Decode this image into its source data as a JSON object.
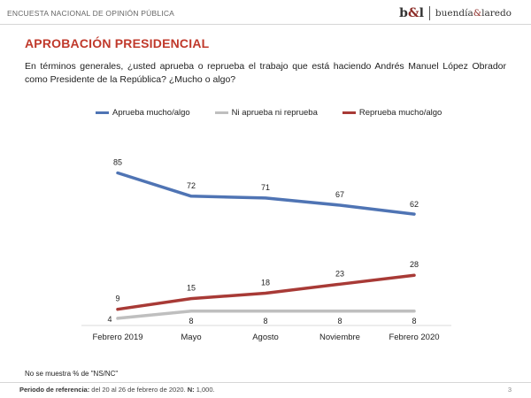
{
  "header": {
    "survey_name": "ENCUESTA NACIONAL DE OPINIÓN PÚBLICA",
    "brand_mark_b": "b",
    "brand_mark_amp": "&",
    "brand_mark_l": "l",
    "brand_name_1": "buendía",
    "brand_name_amp": "&",
    "brand_name_2": "laredo"
  },
  "page": {
    "title": "APROBACIÓN PRESIDENCIAL",
    "question": "En términos generales, ¿usted aprueba o reprueba el trabajo que está haciendo Andrés Manuel López Obrador como Presidente de la República? ¿Mucho o algo?"
  },
  "colors": {
    "approve": "#4f74b4",
    "neutral": "#bfbfbf",
    "disapprove": "#a83a36",
    "title": "#c0392b"
  },
  "chart_data": {
    "type": "line",
    "categories": [
      "Febrero 2019",
      "Mayo",
      "Agosto",
      "Noviembre",
      "Febrero 2020"
    ],
    "series": [
      {
        "name": "Aprueba mucho/algo",
        "values": [
          85,
          72,
          71,
          67,
          62
        ]
      },
      {
        "name": "Ni aprueba ni reprueba",
        "values": [
          4,
          8,
          8,
          8,
          8
        ]
      },
      {
        "name": "Reprueba mucho/algo",
        "values": [
          9,
          15,
          18,
          23,
          28
        ]
      }
    ],
    "ylim": [
      0,
      100
    ],
    "grid": false,
    "legend_position": "top",
    "data_labels": true
  },
  "footnote": "No se muestra % de \"NS/NC\"",
  "footer": {
    "ref_label": "Periodo de referencia:",
    "ref_dates": " del 20 al 26 de febrero de 2020. ",
    "n_label": "N:",
    "n_value": " 1,000.",
    "page_number": "3"
  }
}
